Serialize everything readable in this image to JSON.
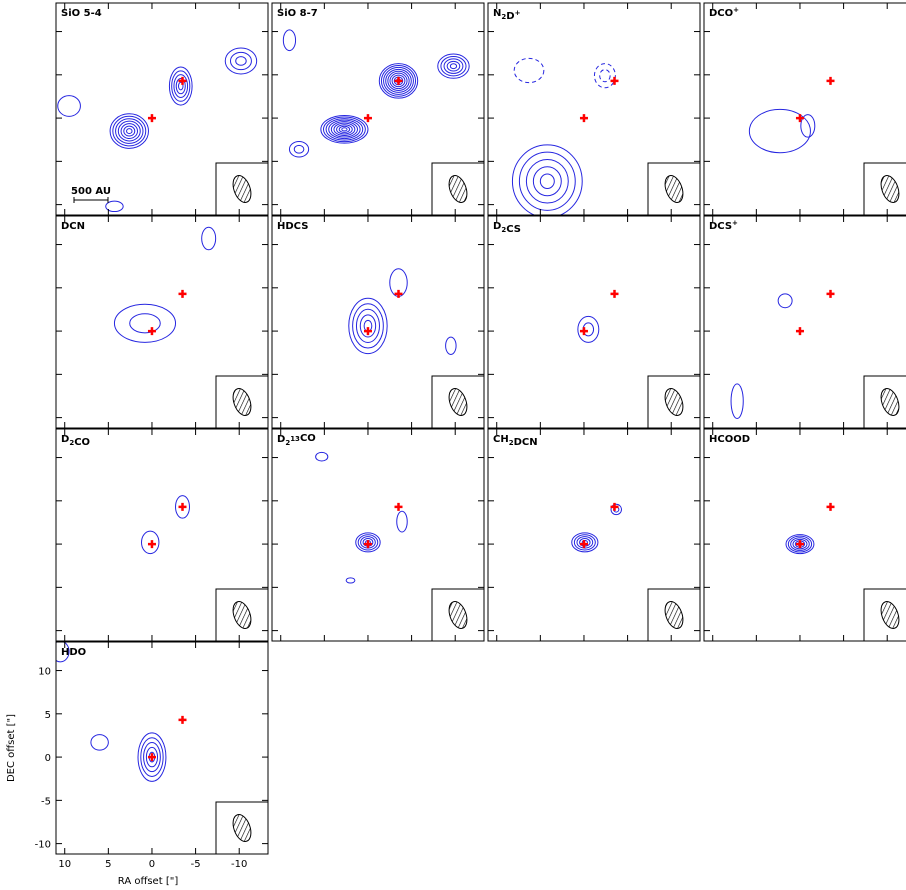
{
  "axes": {
    "xlim": [
      11,
      -13.3
    ],
    "ylim": [
      -11.2,
      13.3
    ],
    "xticks": [
      10,
      5,
      0,
      -5,
      -10
    ],
    "yticks": [
      10,
      5,
      0,
      -5,
      -10
    ],
    "xlabel": "RA offset [\"]",
    "ylabel": "DEC offset [\"]",
    "contour_color": "#2626e0",
    "sources": {
      "x": [
        0,
        -3.5
      ],
      "y": [
        0,
        4.3
      ],
      "color": "#ff0000"
    },
    "scale_bar": "500 AU"
  },
  "chart_data": [
    {
      "type": "contour",
      "title": [
        {
          "text": "SiO 5-4"
        }
      ],
      "components": [
        {
          "x": 2.6,
          "y": -1.5,
          "sx": 2.2,
          "sy": 2.0,
          "n": 7
        },
        {
          "x": -3.3,
          "y": 3.7,
          "sx": 1.3,
          "sy": 2.2,
          "n": 5
        },
        {
          "x": -10.2,
          "y": 6.6,
          "sx": 1.8,
          "sy": 1.5,
          "n": 3
        },
        {
          "x": 4.3,
          "y": -10.2,
          "sx": 1.0,
          "sy": 0.6,
          "n": 1
        },
        {
          "x": 9.5,
          "y": 1.4,
          "sx": 1.3,
          "sy": 1.2,
          "n": 1
        }
      ]
    },
    {
      "type": "contour",
      "title": [
        {
          "text": "SiO 8-7"
        }
      ],
      "components": [
        {
          "x": 2.7,
          "y": -1.3,
          "sx": 2.7,
          "sy": 1.6,
          "n": 9
        },
        {
          "x": -3.5,
          "y": 4.3,
          "sx": 2.2,
          "sy": 2.0,
          "n": 9
        },
        {
          "x": -9.8,
          "y": 6.0,
          "sx": 1.8,
          "sy": 1.4,
          "n": 5
        },
        {
          "x": 7.9,
          "y": -3.6,
          "sx": 1.1,
          "sy": 0.9,
          "n": 2
        },
        {
          "x": 9.0,
          "y": 9.0,
          "sx": 0.7,
          "sy": 1.2,
          "n": 1
        }
      ]
    },
    {
      "type": "contour",
      "title": [
        {
          "text": "N"
        },
        {
          "text": "2",
          "script": "sub"
        },
        {
          "text": "D"
        },
        {
          "text": "+",
          "script": "super"
        }
      ],
      "components": [
        {
          "x": 4.2,
          "y": -7.3,
          "sx": 4.0,
          "sy": 4.2,
          "n": 5
        },
        {
          "x": 6.3,
          "y": 5.5,
          "sx": 1.7,
          "sy": 1.4,
          "n": 1,
          "negative": true
        },
        {
          "x": -2.4,
          "y": 4.9,
          "sx": 1.2,
          "sy": 1.4,
          "n": 2,
          "negative": true
        }
      ]
    },
    {
      "type": "contour",
      "title": [
        {
          "text": "DCO"
        },
        {
          "text": "+",
          "script": "super"
        }
      ],
      "components": [
        {
          "x": 2.3,
          "y": -1.5,
          "sx": 3.5,
          "sy": 2.5,
          "n": 1
        },
        {
          "x": -0.9,
          "y": -0.9,
          "sx": 0.8,
          "sy": 1.3,
          "n": 1
        }
      ]
    },
    {
      "type": "contour",
      "title": [
        {
          "text": "DCN"
        }
      ],
      "components": [
        {
          "x": 0.8,
          "y": 0.9,
          "sx": 3.5,
          "sy": 2.2,
          "n": 2
        },
        {
          "x": -6.5,
          "y": 10.7,
          "sx": 0.8,
          "sy": 1.3,
          "n": 1
        }
      ]
    },
    {
      "type": "contour",
      "title": [
        {
          "text": "HDCS"
        }
      ],
      "components": [
        {
          "x": 0,
          "y": 0.6,
          "sx": 2.2,
          "sy": 3.2,
          "n": 5
        },
        {
          "x": -3.5,
          "y": 5.6,
          "sx": 1.0,
          "sy": 1.6,
          "n": 1
        },
        {
          "x": -9.5,
          "y": -1.7,
          "sx": 0.6,
          "sy": 1.0,
          "n": 1
        }
      ]
    },
    {
      "type": "contour",
      "title": [
        {
          "text": "D"
        },
        {
          "text": "2",
          "script": "sub"
        },
        {
          "text": "CS"
        }
      ],
      "components": [
        {
          "x": -0.5,
          "y": 0.2,
          "sx": 1.2,
          "sy": 1.5,
          "n": 2
        }
      ]
    },
    {
      "type": "contour",
      "title": [
        {
          "text": "DCS"
        },
        {
          "text": "+",
          "script": "super"
        }
      ],
      "components": [
        {
          "x": 1.7,
          "y": 3.5,
          "sx": 0.8,
          "sy": 0.8,
          "n": 1
        },
        {
          "x": 7.2,
          "y": -8.1,
          "sx": 0.7,
          "sy": 2.0,
          "n": 1
        }
      ]
    },
    {
      "type": "contour",
      "title": [
        {
          "text": "D"
        },
        {
          "text": "2",
          "script": "sub"
        },
        {
          "text": "CO"
        }
      ],
      "components": [
        {
          "x": 0.2,
          "y": 0.2,
          "sx": 1.0,
          "sy": 1.3,
          "n": 1
        },
        {
          "x": -3.5,
          "y": 4.3,
          "sx": 0.8,
          "sy": 1.3,
          "n": 1
        }
      ]
    },
    {
      "type": "contour",
      "title": [
        {
          "text": "D"
        },
        {
          "text": "2",
          "script": "sub"
        },
        {
          "text": "13",
          "script": "super"
        },
        {
          "text": "CO"
        }
      ],
      "components": [
        {
          "x": 0,
          "y": 0.2,
          "sx": 1.4,
          "sy": 1.1,
          "n": 5
        },
        {
          "x": -3.9,
          "y": 2.6,
          "sx": 0.6,
          "sy": 1.2,
          "n": 1
        },
        {
          "x": 5.3,
          "y": 10.1,
          "sx": 0.7,
          "sy": 0.5,
          "n": 1
        },
        {
          "x": 2.0,
          "y": -4.2,
          "sx": 0.5,
          "sy": 0.3,
          "n": 1
        }
      ]
    },
    {
      "type": "contour",
      "title": [
        {
          "text": "CH"
        },
        {
          "text": "2",
          "script": "sub"
        },
        {
          "text": "DCN"
        }
      ],
      "components": [
        {
          "x": -0.1,
          "y": 0.2,
          "sx": 1.5,
          "sy": 1.1,
          "n": 5
        },
        {
          "x": -3.7,
          "y": 4.0,
          "sx": 0.6,
          "sy": 0.6,
          "n": 2
        }
      ]
    },
    {
      "type": "contour",
      "title": [
        {
          "text": "HCOOD"
        }
      ],
      "components": [
        {
          "x": 0,
          "y": 0,
          "sx": 1.6,
          "sy": 1.1,
          "n": 6
        }
      ]
    },
    {
      "type": "contour",
      "title": [
        {
          "text": "HDO"
        }
      ],
      "components": [
        {
          "x": 0,
          "y": 0,
          "sx": 1.6,
          "sy": 2.8,
          "n": 5
        },
        {
          "x": 6.0,
          "y": 1.7,
          "sx": 1.0,
          "sy": 0.9,
          "n": 1
        },
        {
          "x": 10.5,
          "y": 12.2,
          "sx": 1.0,
          "sy": 1.2,
          "n": 1
        }
      ]
    }
  ]
}
